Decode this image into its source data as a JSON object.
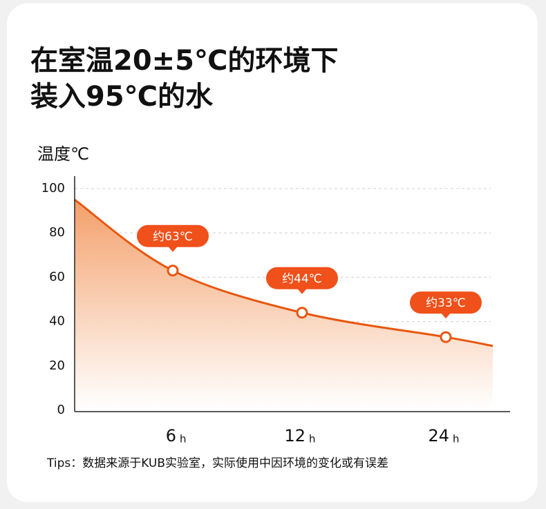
{
  "chart_data": {
    "type": "line",
    "title": [
      "在室温20±5℃的环境下",
      "装入95℃的水"
    ],
    "y_label": "温度℃",
    "x_unit": "h",
    "categories": [
      null,
      "6",
      "12",
      "24",
      null
    ],
    "series": [
      {
        "color": "#e8560f",
        "values": [
          95,
          63,
          44,
          33,
          29
        ],
        "value_labels": [
          null,
          "约63℃",
          "约44℃",
          "约33℃",
          null
        ]
      }
    ],
    "ylim": [
      0,
      100
    ],
    "yticks": [
      0,
      20,
      40,
      60,
      80,
      100
    ],
    "grid": true,
    "note": "Tips：数据来源于KUB实验室，实际使用中因环境的变化或有误差"
  }
}
